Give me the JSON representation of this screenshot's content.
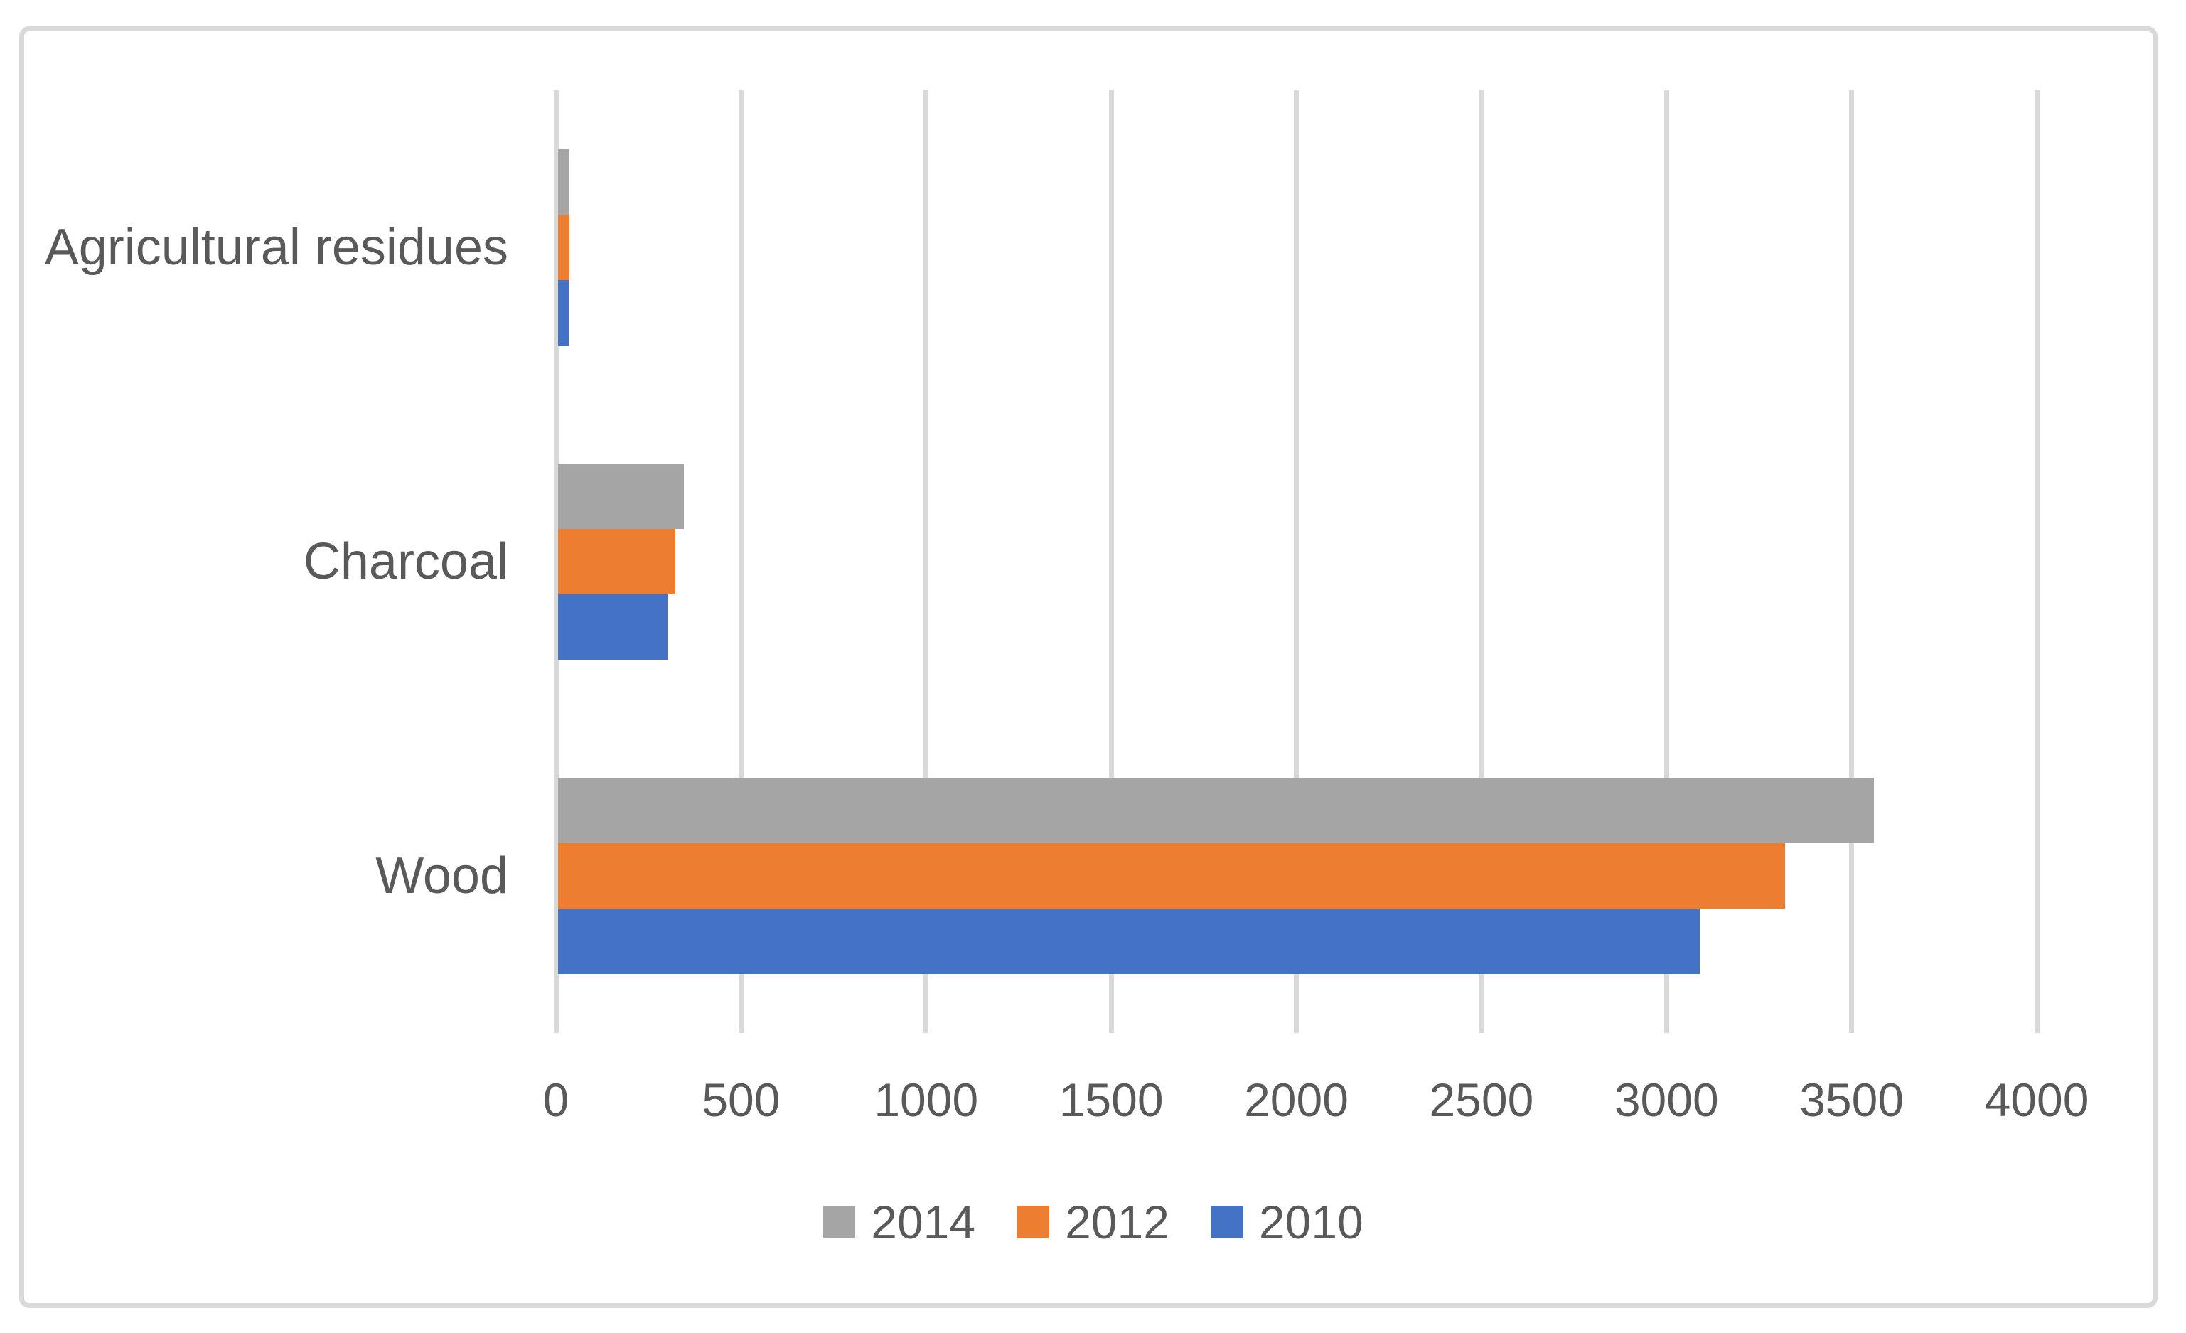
{
  "chart_data": {
    "type": "bar",
    "orientation": "horizontal",
    "title": "",
    "xlabel": "",
    "ylabel": "",
    "categories": [
      "Agricultural residues",
      "Charcoal",
      "Wood"
    ],
    "series": [
      {
        "name": "2014",
        "color": "#A5A5A5",
        "values": [
          37,
          345,
          3560
        ]
      },
      {
        "name": "2012",
        "color": "#ED7D31",
        "values": [
          36,
          322,
          3320
        ]
      },
      {
        "name": "2010",
        "color": "#4472C4",
        "values": [
          35,
          302,
          3090
        ]
      }
    ],
    "xlim": [
      0,
      4000
    ],
    "x_ticks": [
      0,
      500,
      1000,
      1500,
      2000,
      2500,
      3000,
      3500,
      4000
    ],
    "x_tick_labels": [
      "0",
      "500",
      "1000",
      "1500",
      "2000",
      "2500",
      "3000",
      "3500",
      "4000"
    ],
    "grid": true,
    "legend_position": "bottom",
    "colors": {
      "gridline": "#D9D9D9",
      "border": "#D9D9D9",
      "text": "#595959",
      "background": "#FFFFFF"
    }
  }
}
